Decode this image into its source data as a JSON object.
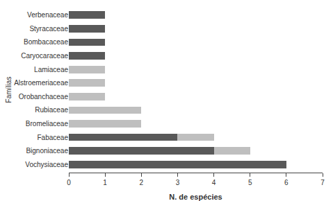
{
  "chart_data": {
    "type": "bar",
    "orientation": "horizontal",
    "stacked": true,
    "categories": [
      "Vochysiaceae",
      "Bignoniaceae",
      "Fabaceae",
      "Bromeliaceae",
      "Rubiaceae",
      "Orobanchaceae",
      "Alstroemeriaceae",
      "Lamiaceae",
      "Caryocaraceae",
      "Bombacaceae",
      "Styracaceae",
      "Verbenaceae"
    ],
    "series": [
      {
        "color": "#595959",
        "values": [
          6,
          4,
          3,
          0,
          0,
          0,
          0,
          0,
          1,
          1,
          1,
          1
        ]
      },
      {
        "color": "#bfbfbf",
        "values": [
          0,
          1,
          1,
          2,
          2,
          1,
          1,
          1,
          0,
          0,
          0,
          0
        ]
      }
    ],
    "xlabel": "N. de espécies",
    "ylabel": "Famílias",
    "xlim": [
      0,
      7
    ],
    "xticks": [
      0,
      1,
      2,
      3,
      4,
      5,
      6,
      7
    ],
    "grid": false
  }
}
